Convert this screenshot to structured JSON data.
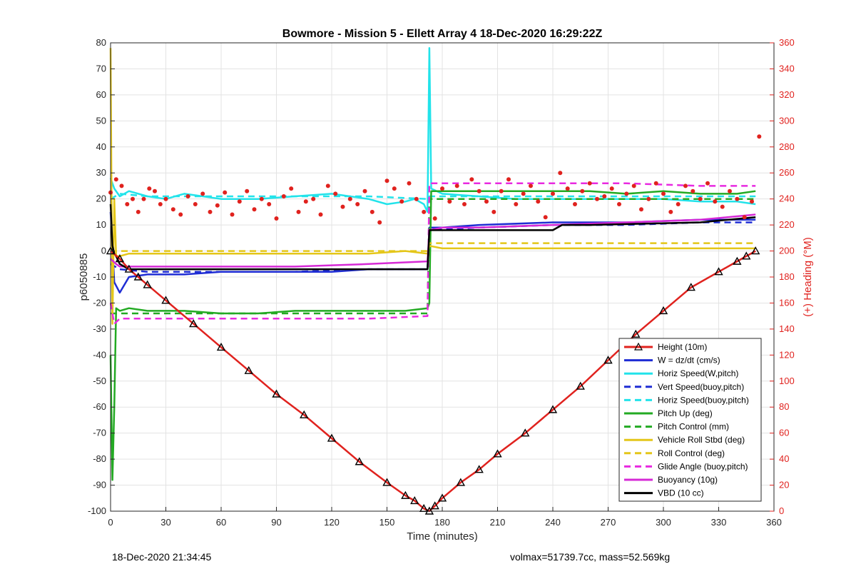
{
  "chart_data": {
    "type": "line",
    "title": "Bowmore - Mission 5 - Ellett Array 4 18-Dec-2020 16:29:22Z",
    "xlabel": "Time (minutes)",
    "ylabel": "p6050885",
    "ylabel_right": "(+) Heading (°M)",
    "xlim": [
      0,
      360
    ],
    "ylim": [
      -100,
      80
    ],
    "ylim_right": [
      0,
      360
    ],
    "grid": true,
    "legend_position": "lower-right",
    "x_ticks": [
      "0",
      "30",
      "60",
      "90",
      "120",
      "150",
      "180",
      "210",
      "240",
      "270",
      "300",
      "330",
      "360"
    ],
    "y_ticks": [
      "80",
      "70",
      "60",
      "50",
      "40",
      "30",
      "20",
      "10",
      "0",
      "-10",
      "-20",
      "-30",
      "-40",
      "-50",
      "-60",
      "-70",
      "-80",
      "-90",
      "-100"
    ],
    "y_ticks_right": [
      "360",
      "340",
      "320",
      "300",
      "280",
      "260",
      "240",
      "220",
      "200",
      "180",
      "160",
      "140",
      "120",
      "100",
      "80",
      "60",
      "40",
      "20",
      "0"
    ],
    "colors": {
      "height": "#e0221e",
      "w": "#1f2dd4",
      "horiz": "#22e3ea",
      "pitch": "#23aa23",
      "roll": "#e4c619",
      "glide": "#e82ae0",
      "buoy": "#d62ad6",
      "vbd": "#000000",
      "heading": "#e0221e"
    },
    "series": [
      {
        "name": "Height (10m)",
        "style": "solid",
        "color": "#e0221e",
        "x": [
          0,
          5,
          10,
          15,
          20,
          30,
          45,
          60,
          75,
          90,
          105,
          120,
          135,
          150,
          160,
          165,
          170,
          173,
          176,
          180,
          190,
          200,
          210,
          225,
          240,
          255,
          270,
          285,
          300,
          315,
          330,
          340,
          345,
          350
        ],
        "y": [
          0,
          -3,
          -7,
          -10,
          -13,
          -19,
          -28,
          -37,
          -46,
          -55,
          -63,
          -72,
          -81,
          -89,
          -94,
          -96,
          -99,
          -100,
          -98,
          -95,
          -89,
          -84,
          -78,
          -70,
          -61,
          -52,
          -42,
          -32,
          -23,
          -14,
          -8,
          -4,
          -2,
          0
        ]
      },
      {
        "name": "W = dz/dt (cm/s)",
        "style": "solid",
        "color": "#1f2dd4",
        "x": [
          0,
          2,
          5,
          10,
          20,
          40,
          60,
          80,
          100,
          120,
          140,
          160,
          172,
          173,
          180,
          200,
          240,
          280,
          320,
          350
        ],
        "y": [
          15,
          -12,
          -16,
          -10,
          -9,
          -9,
          -8,
          -8,
          -8,
          -8,
          -7,
          -7,
          -7,
          9,
          9,
          10,
          11,
          11,
          12,
          12
        ]
      },
      {
        "name": "Horiz Speed(W,pitch)",
        "style": "solid",
        "color": "#22e3ea",
        "x": [
          0,
          2,
          5,
          10,
          20,
          30,
          40,
          50,
          60,
          80,
          100,
          120,
          140,
          150,
          160,
          165,
          170,
          172,
          173,
          174,
          180,
          200,
          220,
          240,
          260,
          280,
          300,
          320,
          340,
          350
        ],
        "y": [
          28,
          24,
          21,
          23,
          21,
          20,
          22,
          21,
          20,
          20,
          21,
          22,
          20,
          18,
          19,
          20,
          18,
          15,
          78,
          24,
          22,
          21,
          20,
          20,
          20,
          20,
          20,
          19,
          19,
          18
        ]
      },
      {
        "name": "Vert Speed(buoy,pitch)",
        "style": "dashed",
        "color": "#1f2dd4",
        "x": [
          0,
          5,
          20,
          60,
          100,
          140,
          172,
          173,
          200,
          240,
          280,
          320,
          350
        ],
        "y": [
          -5,
          -7,
          -8,
          -8,
          -8,
          -7,
          -7,
          8,
          9,
          10,
          10,
          11,
          11
        ]
      },
      {
        "name": "Horiz Speed(buoy,pitch)",
        "style": "dashed",
        "color": "#22e3ea",
        "x": [
          0,
          5,
          20,
          60,
          100,
          140,
          172,
          173,
          200,
          240,
          280,
          320,
          350
        ],
        "y": [
          20,
          22,
          21,
          21,
          21,
          21,
          20,
          21,
          21,
          21,
          21,
          21,
          21
        ]
      },
      {
        "name": "Pitch Up (deg)",
        "style": "solid",
        "color": "#23aa23",
        "x": [
          0,
          1,
          2,
          3,
          5,
          10,
          20,
          40,
          60,
          80,
          100,
          120,
          140,
          160,
          172,
          173,
          174,
          180,
          200,
          220,
          240,
          260,
          280,
          300,
          320,
          340,
          350
        ],
        "y": [
          -40,
          -88,
          -60,
          -22,
          -23,
          -22,
          -23,
          -23,
          -24,
          -24,
          -23,
          -23,
          -23,
          -23,
          -22,
          -20,
          23,
          23,
          23,
          23,
          23,
          23,
          22,
          23,
          22,
          22,
          23
        ]
      },
      {
        "name": "Pitch Control (mm)",
        "style": "dashed",
        "color": "#23aa23",
        "x": [
          0,
          5,
          20,
          60,
          100,
          140,
          172,
          173,
          200,
          240,
          280,
          320,
          350
        ],
        "y": [
          -24,
          -24,
          -24,
          -24,
          -24,
          -24,
          -24,
          20,
          20,
          20,
          20,
          20,
          20
        ]
      },
      {
        "name": "Vehicle Roll Stbd (deg)",
        "style": "solid",
        "color": "#e4c619",
        "x": [
          0,
          1,
          2,
          3,
          5,
          10,
          20,
          40,
          60,
          80,
          100,
          120,
          140,
          160,
          172,
          173,
          180,
          200,
          240,
          280,
          320,
          350
        ],
        "y": [
          78,
          -28,
          20,
          -2,
          -2,
          -1,
          -1,
          -1,
          -1,
          -1,
          -1,
          -1,
          -1,
          0,
          -1,
          2,
          1,
          1,
          1,
          1,
          1,
          1
        ]
      },
      {
        "name": "Roll Control (deg)",
        "style": "dashed",
        "color": "#e4c619",
        "x": [
          0,
          5,
          20,
          60,
          100,
          140,
          172,
          173,
          200,
          240,
          280,
          320,
          350
        ],
        "y": [
          0,
          0,
          0,
          0,
          0,
          0,
          0,
          3,
          3,
          3,
          3,
          3,
          3
        ]
      },
      {
        "name": "Glide Angle (buoy,pitch)",
        "style": "dashed",
        "color": "#e82ae0",
        "x": [
          0,
          2,
          5,
          20,
          60,
          100,
          140,
          172,
          173,
          200,
          240,
          280,
          320,
          350
        ],
        "y": [
          -20,
          -28,
          -26,
          -26,
          -26,
          -26,
          -26,
          -25,
          26,
          26,
          26,
          26,
          25,
          25
        ]
      },
      {
        "name": "Buoyancy (10g)",
        "style": "solid",
        "color": "#d62ad6",
        "x": [
          0,
          3,
          5,
          20,
          60,
          100,
          140,
          172,
          173,
          180,
          200,
          240,
          280,
          320,
          350
        ],
        "y": [
          -3,
          -5,
          -6,
          -6,
          -6,
          -6,
          -5,
          -4,
          8,
          9,
          9,
          10,
          11,
          12,
          14
        ]
      },
      {
        "name": "VBD (10 cc)",
        "style": "solid",
        "color": "#000000",
        "x": [
          0,
          1,
          2,
          3,
          5,
          10,
          20,
          60,
          100,
          140,
          172,
          173,
          180,
          240,
          245,
          260,
          320,
          350
        ],
        "y": [
          18,
          2,
          -1,
          -2,
          -5,
          -7,
          -7,
          -7,
          -7,
          -7,
          -7,
          8,
          8,
          8,
          10,
          10,
          11,
          13
        ]
      }
    ],
    "heading_series": {
      "name": "(+) Heading (°M)",
      "axis": "right",
      "x": [
        0,
        3,
        6,
        9,
        12,
        15,
        18,
        21,
        24,
        27,
        30,
        34,
        38,
        42,
        46,
        50,
        54,
        58,
        62,
        66,
        70,
        74,
        78,
        82,
        86,
        90,
        94,
        98,
        102,
        106,
        110,
        114,
        118,
        122,
        126,
        130,
        134,
        138,
        142,
        146,
        150,
        154,
        158,
        162,
        166,
        170,
        176,
        180,
        184,
        188,
        192,
        196,
        200,
        204,
        208,
        212,
        216,
        220,
        224,
        228,
        232,
        236,
        240,
        244,
        248,
        252,
        256,
        260,
        264,
        268,
        272,
        276,
        280,
        284,
        288,
        292,
        296,
        300,
        304,
        308,
        312,
        316,
        320,
        324,
        328,
        332,
        336,
        340,
        344,
        348,
        352
      ],
      "y": [
        245,
        255,
        250,
        236,
        240,
        230,
        240,
        248,
        246,
        236,
        240,
        232,
        228,
        242,
        236,
        244,
        230,
        235,
        245,
        228,
        238,
        246,
        232,
        240,
        236,
        225,
        242,
        248,
        230,
        238,
        240,
        228,
        250,
        244,
        234,
        240,
        236,
        246,
        230,
        222,
        254,
        248,
        238,
        252,
        240,
        230,
        225,
        248,
        238,
        250,
        236,
        255,
        246,
        238,
        230,
        246,
        255,
        236,
        244,
        250,
        238,
        226,
        244,
        260,
        248,
        236,
        246,
        252,
        240,
        242,
        248,
        236,
        244,
        250,
        232,
        240,
        252,
        244,
        230,
        236,
        250,
        246,
        240,
        252,
        238,
        234,
        246,
        240,
        226,
        238,
        288
      ]
    },
    "annotations": {
      "footer_left": "18-Dec-2020 21:34:45",
      "footer_right": "volmax=51739.7cc, mass=52.569kg"
    }
  }
}
